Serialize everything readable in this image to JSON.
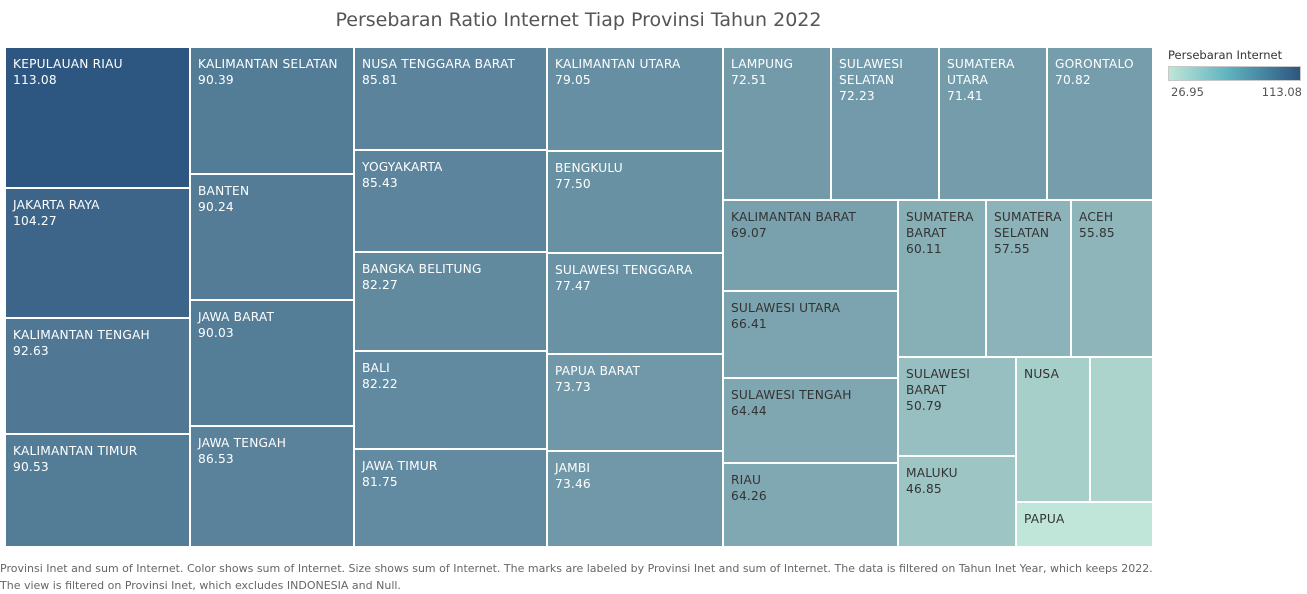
{
  "chart_data": {
    "type": "treemap",
    "title": "Persebaran Ratio Internet Tiap Provinsi Tahun 2022",
    "color_scale": {
      "title": "Persebaran Internet",
      "min": 26.95,
      "max": 113.08,
      "min_label": "26.95",
      "max_label": "113.08",
      "low_color": "#bfe6d8",
      "high_color": "#2d5680"
    },
    "items": [
      {
        "label": "KEPULAUAN RIAU",
        "value": 113.08,
        "value_label": "113.08"
      },
      {
        "label": "JAKARTA RAYA",
        "value": 104.27,
        "value_label": "104.27"
      },
      {
        "label": "KALIMANTAN TENGAH",
        "value": 92.63,
        "value_label": "92.63"
      },
      {
        "label": "KALIMANTAN TIMUR",
        "value": 90.53,
        "value_label": "90.53"
      },
      {
        "label": "KALIMANTAN SELATAN",
        "value": 90.39,
        "value_label": "90.39"
      },
      {
        "label": "BANTEN",
        "value": 90.24,
        "value_label": "90.24"
      },
      {
        "label": "JAWA BARAT",
        "value": 90.03,
        "value_label": "90.03"
      },
      {
        "label": "JAWA TENGAH",
        "value": 86.53,
        "value_label": "86.53"
      },
      {
        "label": "NUSA TENGGARA BARAT",
        "value": 85.81,
        "value_label": "85.81"
      },
      {
        "label": "YOGYAKARTA",
        "value": 85.43,
        "value_label": "85.43"
      },
      {
        "label": "BANGKA BELITUNG",
        "value": 82.27,
        "value_label": "82.27"
      },
      {
        "label": "BALI",
        "value": 82.22,
        "value_label": "82.22"
      },
      {
        "label": "JAWA TIMUR",
        "value": 81.75,
        "value_label": "81.75"
      },
      {
        "label": "KALIMANTAN UTARA",
        "value": 79.05,
        "value_label": "79.05"
      },
      {
        "label": "BENGKULU",
        "value": 77.5,
        "value_label": "77.50"
      },
      {
        "label": "SULAWESI TENGGARA",
        "value": 77.47,
        "value_label": "77.47"
      },
      {
        "label": "PAPUA BARAT",
        "value": 73.73,
        "value_label": "73.73"
      },
      {
        "label": "JAMBI",
        "value": 73.46,
        "value_label": "73.46"
      },
      {
        "label": "LAMPUNG",
        "value": 72.51,
        "value_label": "72.51"
      },
      {
        "label": "SULAWESI SELATAN",
        "value": 72.23,
        "value_label": "72.23"
      },
      {
        "label": "SUMATERA UTARA",
        "value": 71.41,
        "value_label": "71.41"
      },
      {
        "label": "GORONTALO",
        "value": 70.82,
        "value_label": "70.82"
      },
      {
        "label": "KALIMANTAN BARAT",
        "value": 69.07,
        "value_label": "69.07"
      },
      {
        "label": "SULAWESI UTARA",
        "value": 66.41,
        "value_label": "66.41"
      },
      {
        "label": "SULAWESI TENGAH",
        "value": 64.44,
        "value_label": "64.44"
      },
      {
        "label": "RIAU",
        "value": 64.26,
        "value_label": "64.26"
      },
      {
        "label": "SUMATERA BARAT",
        "value": 60.11,
        "value_label": "60.11"
      },
      {
        "label": "SUMATERA SELATAN",
        "value": 57.55,
        "value_label": "57.55"
      },
      {
        "label": "ACEH",
        "value": 55.85,
        "value_label": "55.85"
      },
      {
        "label": "SULAWESI BARAT",
        "value": 50.79,
        "value_label": "50.79"
      },
      {
        "label": "MALUKU",
        "value": 46.85,
        "value_label": "46.85"
      },
      {
        "label": "NUSA",
        "value": null,
        "value_label": ""
      },
      {
        "label": "",
        "value": null,
        "value_label": ""
      },
      {
        "label": "PAPUA",
        "value": 26.95,
        "value_label": ""
      }
    ],
    "caption": "Provinsi Inet and sum of Internet.  Color shows sum of Internet.  Size shows sum of Internet.  The marks are labeled by Provinsi Inet and sum of Internet. The data is filtered on Tahun Inet Year, which keeps 2022. The view is filtered on Provinsi Inet, which excludes INDONESIA and Null."
  }
}
